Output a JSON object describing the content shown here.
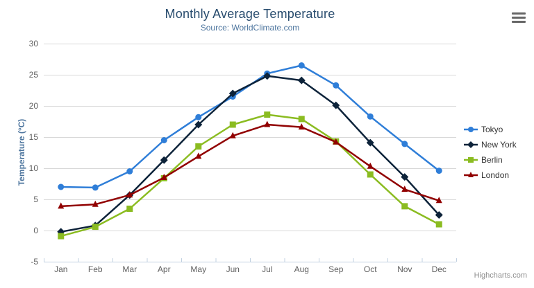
{
  "chart": {
    "title": "Monthly Average Temperature",
    "subtitle": "Source: WorldClimate.com",
    "y_axis_title": "Temperature (°C)",
    "credits": "Highcharts.com",
    "menu_icon": "hamburger-icon"
  },
  "colors": {
    "title": "#274b6d",
    "subtitle": "#4d759e",
    "axis_title": "#4d759e",
    "tick_label": "#606060",
    "gridline": "#d8d8d8",
    "axis_line": "#c0d0e0",
    "legend_text": "#333333",
    "credits": "#909090",
    "background": "#ffffff"
  },
  "chart_data": {
    "type": "line",
    "title": "Monthly Average Temperature",
    "subtitle": "Source: WorldClimate.com",
    "xlabel": "",
    "ylabel": "Temperature (°C)",
    "categories": [
      "Jan",
      "Feb",
      "Mar",
      "Apr",
      "May",
      "Jun",
      "Jul",
      "Aug",
      "Sep",
      "Oct",
      "Nov",
      "Dec"
    ],
    "y_ticks": [
      -5,
      0,
      5,
      10,
      15,
      20,
      25,
      30
    ],
    "ylim": [
      -5,
      30
    ],
    "grid": true,
    "legend_position": "right",
    "series": [
      {
        "name": "Tokyo",
        "color": "#2f7ed8",
        "marker": "circle",
        "values": [
          7.0,
          6.9,
          9.5,
          14.5,
          18.2,
          21.5,
          25.2,
          26.5,
          23.3,
          18.3,
          13.9,
          9.6
        ]
      },
      {
        "name": "New York",
        "color": "#0d233a",
        "marker": "diamond",
        "values": [
          -0.2,
          0.8,
          5.7,
          11.3,
          17.0,
          22.0,
          24.8,
          24.1,
          20.1,
          14.1,
          8.6,
          2.5
        ]
      },
      {
        "name": "Berlin",
        "color": "#8bbc21",
        "marker": "square",
        "values": [
          -0.9,
          0.6,
          3.5,
          8.4,
          13.5,
          17.0,
          18.6,
          17.9,
          14.3,
          9.0,
          3.9,
          1.0
        ]
      },
      {
        "name": "London",
        "color": "#910000",
        "marker": "triangle",
        "values": [
          3.9,
          4.2,
          5.7,
          8.5,
          11.9,
          15.2,
          17.0,
          16.6,
          14.2,
          10.3,
          6.6,
          4.8
        ]
      }
    ]
  }
}
